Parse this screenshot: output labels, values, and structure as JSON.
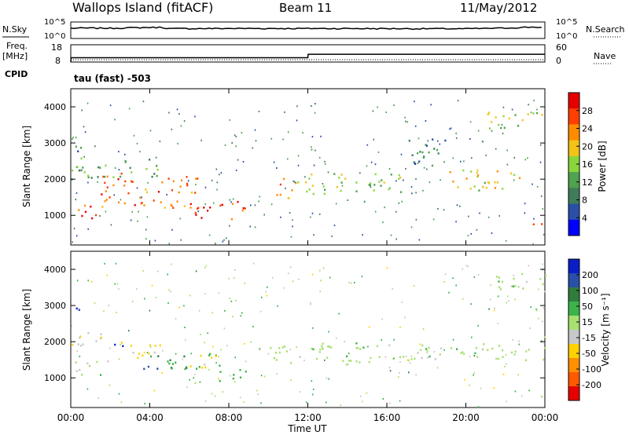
{
  "header": {
    "site": "Wallops Island (fitACF)",
    "beam": "Beam 11",
    "date": "11/May/2012"
  },
  "labels": {
    "nsky": "N.Sky",
    "nsearch": "N.Search",
    "freq": "Freq.",
    "mhz": "[MHz]",
    "nave": "Nave",
    "cpid": "CPID",
    "program": "tau (fast) -503",
    "nsky_top": "10^5",
    "nsky_bottom": "10^0",
    "freq_top": "18",
    "freq_bottom": "8",
    "nave_top": "60",
    "nave_bottom": "0"
  },
  "colors": {
    "power": [
      "#0000ff",
      "#2a4fa8",
      "#3f7d5a",
      "#4fa24f",
      "#88d63c",
      "#f2c418",
      "#ff8c00",
      "#ff3f00",
      "#e60000"
    ],
    "velocity": [
      "#0a1ec8",
      "#2850a8",
      "#2e7d3a",
      "#3cb44b",
      "#a8e070",
      "#c8c8c8",
      "#ffd200",
      "#ff9000",
      "#ff5a00",
      "#e60000"
    ],
    "ground_scatter": "#c0c0c0"
  },
  "chart_data": [
    {
      "type": "line",
      "title": "N.Sky / N.Search",
      "x_range": [
        "00:00",
        "00:00"
      ],
      "yscale": "log",
      "ylim": [
        1,
        100000
      ],
      "series": [
        {
          "name": "N.Sky",
          "style": "solid",
          "x": [
            0,
            0.5,
            2,
            4.5,
            5,
            8,
            12,
            16,
            20,
            22,
            23.5,
            24
          ],
          "y": [
            1200,
            1500,
            1300,
            2500,
            1000,
            1100,
            1100,
            1000,
            900,
            1400,
            3000,
            2000
          ]
        },
        {
          "name": "N.Search",
          "style": "dotted",
          "x": [
            0,
            24
          ],
          "y": [
            1,
            1
          ]
        }
      ]
    },
    {
      "type": "line",
      "title": "Freq. / Nave",
      "x_range": [
        "00:00",
        "00:00"
      ],
      "ylim_left": [
        8,
        18
      ],
      "ylim_right": [
        0,
        60
      ],
      "series": [
        {
          "name": "Freq.",
          "units": "MHz",
          "style": "solid",
          "x": [
            0,
            0.02,
            12,
            12.02,
            24
          ],
          "y": [
            8,
            10.5,
            10.5,
            12.5,
            12.5
          ]
        },
        {
          "name": "Nave",
          "style": "dotted",
          "x": [
            0,
            24
          ],
          "y": [
            8,
            8
          ]
        }
      ]
    },
    {
      "type": "heatmap",
      "title": "Power",
      "xlabel": "",
      "ylabel": "Slant Range [km]",
      "xlim": [
        0,
        24
      ],
      "ylim": [
        180,
        4500
      ],
      "colorbar": {
        "label": "Power [dB]",
        "ticks": [
          4,
          8,
          12,
          16,
          20,
          24,
          28
        ],
        "range": [
          0,
          32
        ]
      },
      "regions": [
        {
          "time": [
            0,
            1.5
          ],
          "range": [
            900,
            1300
          ],
          "value": 28
        },
        {
          "time": [
            1.5,
            3.5
          ],
          "range": [
            1200,
            2200
          ],
          "value": 26
        },
        {
          "time": [
            3.5,
            6.5
          ],
          "range": [
            1200,
            2100
          ],
          "value": 24
        },
        {
          "time": [
            6.0,
            8.8
          ],
          "range": [
            900,
            1400
          ],
          "value": 28
        },
        {
          "time": [
            0,
            4.5
          ],
          "range": [
            2000,
            2600
          ],
          "value": 12
        },
        {
          "time": [
            0,
            0.8
          ],
          "range": [
            2700,
            3000
          ],
          "value": 8
        },
        {
          "time": [
            10.3,
            12.0
          ],
          "range": [
            1500,
            2100
          ],
          "value": 22
        },
        {
          "time": [
            12,
            17
          ],
          "range": [
            1600,
            2200
          ],
          "value": 16
        },
        {
          "time": [
            17,
            19
          ],
          "range": [
            2400,
            3300
          ],
          "value": 10
        },
        {
          "time": [
            19,
            23
          ],
          "range": [
            1700,
            2300
          ],
          "value": 18
        },
        {
          "time": [
            21,
            24
          ],
          "range": [
            3400,
            3900
          ],
          "value": 16
        },
        {
          "time": [
            23.3,
            24
          ],
          "range": [
            600,
            800
          ],
          "value": 28
        }
      ]
    },
    {
      "type": "heatmap",
      "title": "Velocity",
      "xlabel": "Time UT",
      "ylabel": "Slant Range [km]",
      "x_ticks": [
        "00:00",
        "04:00",
        "08:00",
        "12:00",
        "16:00",
        "20:00",
        "00:00"
      ],
      "xlim": [
        0,
        24
      ],
      "ylim": [
        180,
        4500
      ],
      "colorbar": {
        "label": "Velocity [m s^-1]",
        "ticks": [
          200,
          100,
          50,
          15,
          -15,
          -50,
          -100,
          -200
        ],
        "range": [
          -250,
          250
        ]
      },
      "regions": [
        {
          "time": [
            0,
            0.6
          ],
          "range": [
            2700,
            3000
          ],
          "value": 220
        },
        {
          "time": [
            1.8,
            2.7
          ],
          "range": [
            1800,
            2000
          ],
          "value": 220
        },
        {
          "time": [
            0,
            2.0
          ],
          "range": [
            1100,
            1500
          ],
          "value": 0
        },
        {
          "time": [
            0,
            2.0
          ],
          "range": [
            1900,
            2400
          ],
          "value": -40
        },
        {
          "time": [
            2.5,
            4.5
          ],
          "range": [
            1500,
            2000
          ],
          "value": -60
        },
        {
          "time": [
            4.0,
            7.5
          ],
          "range": [
            1200,
            1700
          ],
          "value": 40
        },
        {
          "time": [
            6.0,
            7.5
          ],
          "range": [
            1300,
            1700
          ],
          "value": -60
        },
        {
          "time": [
            3.5,
            5.0
          ],
          "range": [
            1200,
            1400
          ],
          "value": 120
        },
        {
          "time": [
            7.5,
            9.0
          ],
          "range": [
            900,
            1300
          ],
          "value": 30
        },
        {
          "time": [
            10,
            16
          ],
          "range": [
            1400,
            2000
          ],
          "value": 0
        },
        {
          "time": [
            16,
            24
          ],
          "range": [
            1500,
            2000
          ],
          "value": 0
        },
        {
          "time": [
            21,
            24
          ],
          "range": [
            3400,
            3900
          ],
          "value": 0
        },
        {
          "time": [
            23.5,
            24
          ],
          "range": [
            500,
            700
          ],
          "value": 0
        }
      ]
    }
  ],
  "axes": {
    "x_ticks": [
      "00:00",
      "04:00",
      "08:00",
      "12:00",
      "16:00",
      "20:00",
      "00:00"
    ],
    "xlabel": "Time UT",
    "y_ticks": [
      "1000",
      "2000",
      "3000",
      "4000"
    ],
    "ylabel": "Slant Range [km]",
    "power_ticks": [
      "28",
      "24",
      "20",
      "16",
      "12",
      "8",
      "4"
    ],
    "power_label": "Power [dB]",
    "vel_ticks": [
      "200",
      "100",
      "50",
      "15",
      "-15",
      "-50",
      "-100",
      "-200"
    ],
    "vel_label": "Velocity [m s⁻¹]"
  }
}
